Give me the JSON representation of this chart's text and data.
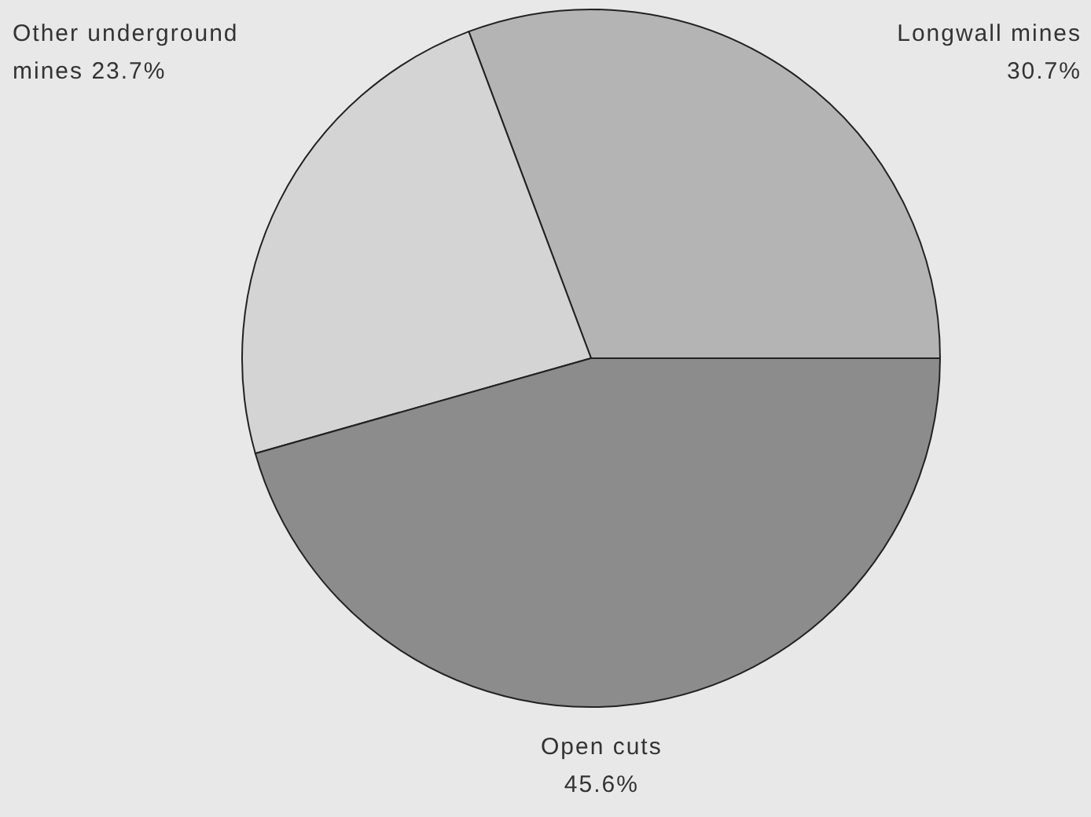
{
  "chart_data": {
    "type": "pie",
    "categories": [
      "Longwall mines",
      "Other underground mines",
      "Open cuts"
    ],
    "values": [
      30.7,
      23.7,
      45.6
    ],
    "colors": [
      "#b4b4b4",
      "#d4d4d4",
      "#8c8c8c"
    ],
    "value_labels": [
      "30.7%",
      "23.7%",
      "45.6%"
    ]
  }
}
